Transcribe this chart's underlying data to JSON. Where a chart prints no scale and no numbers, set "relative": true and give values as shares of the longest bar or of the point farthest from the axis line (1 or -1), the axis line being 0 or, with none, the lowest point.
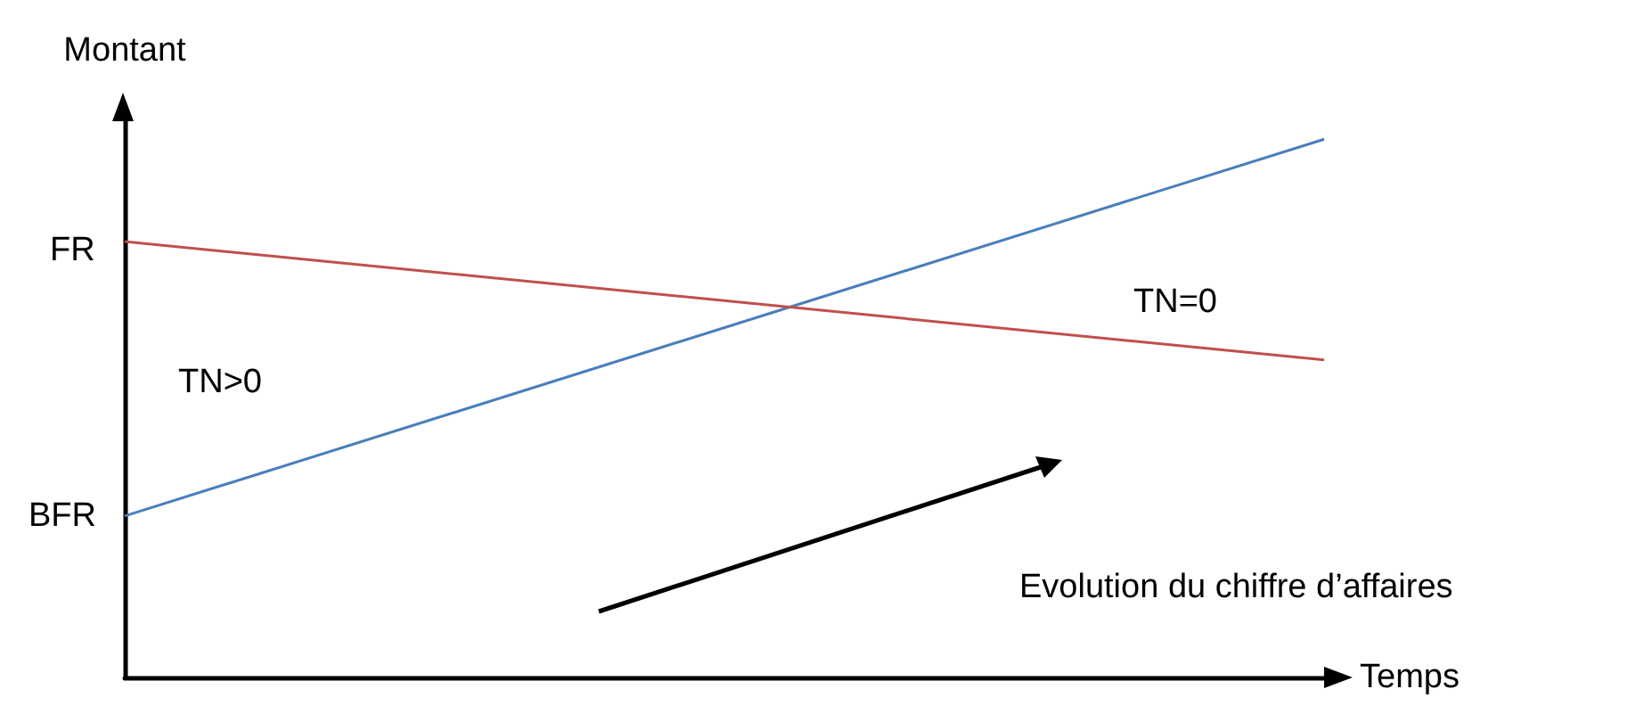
{
  "chart_data": {
    "type": "line",
    "relative": true,
    "xlabel": "Temps",
    "ylabel": "Montant",
    "categories": [
      null,
      null
    ],
    "series": [
      {
        "color": "#4a7ebb",
        "values": [
          0.3,
          1
        ]
      },
      {
        "color": "#c0504d",
        "values": [
          0.81,
          0.59
        ]
      }
    ],
    "annotations": [
      "FR",
      "BFR",
      "TN>0",
      "TN=0",
      "Evolution du chiffre d’affaires"
    ],
    "grid": false,
    "marker": "none",
    "line_style": "solid"
  }
}
